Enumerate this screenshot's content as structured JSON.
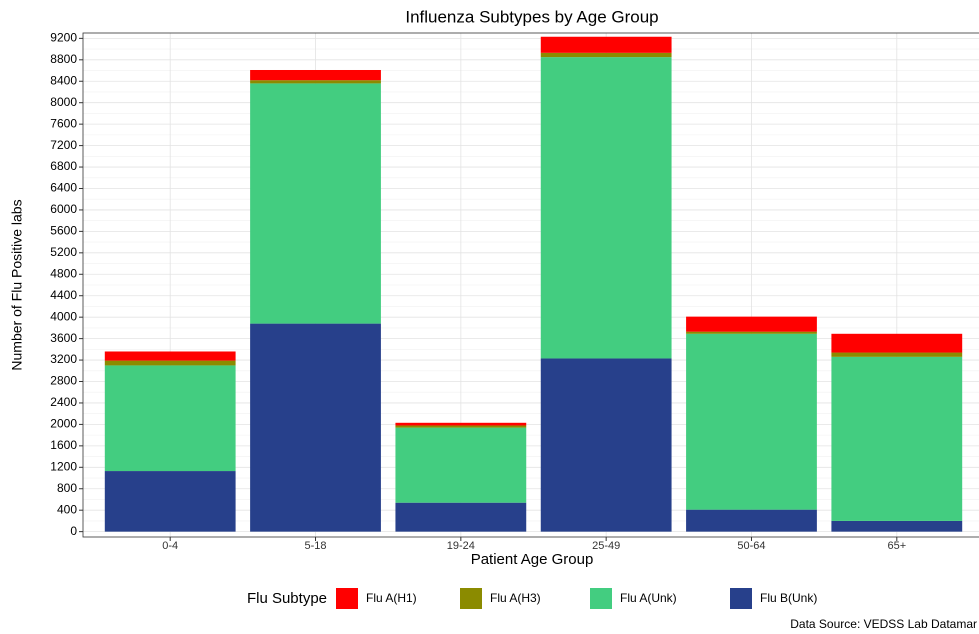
{
  "chart_data": {
    "type": "stacked_bar",
    "title": "Influenza Subtypes by Age Group",
    "x_label": "Patient Age Group",
    "y_label": "Number of Flu Positive labs",
    "legend_title": "Flu Subtype",
    "source": "Data Source: VEDSS Lab Datamar",
    "categories": [
      "0-4",
      "5-18",
      "19-24",
      "25-49",
      "50-64",
      "65+"
    ],
    "series": [
      {
        "name": "Flu A(H1)",
        "color": "#ff0000",
        "values": [
          170,
          190,
          50,
          300,
          280,
          350
        ]
      },
      {
        "name": "Flu A(H3)",
        "color": "#8b8b00",
        "values": [
          90,
          60,
          40,
          80,
          40,
          80
        ]
      },
      {
        "name": "Flu A(Unk)",
        "color": "#43cd80",
        "values": [
          1970,
          4480,
          1400,
          5620,
          3280,
          3060
        ]
      },
      {
        "name": "Flu B(Unk)",
        "color": "#27408b",
        "values": [
          1130,
          3880,
          540,
          3230,
          410,
          200
        ]
      }
    ],
    "ylim": [
      -100,
      9300
    ],
    "yticks": [
      0,
      400,
      800,
      1200,
      1600,
      2000,
      2400,
      2800,
      3200,
      3600,
      4000,
      4400,
      4800,
      5200,
      5600,
      6000,
      6400,
      6800,
      7200,
      7600,
      8000,
      8400,
      8800,
      9200
    ],
    "grid": true,
    "legend_position": "bottom"
  }
}
